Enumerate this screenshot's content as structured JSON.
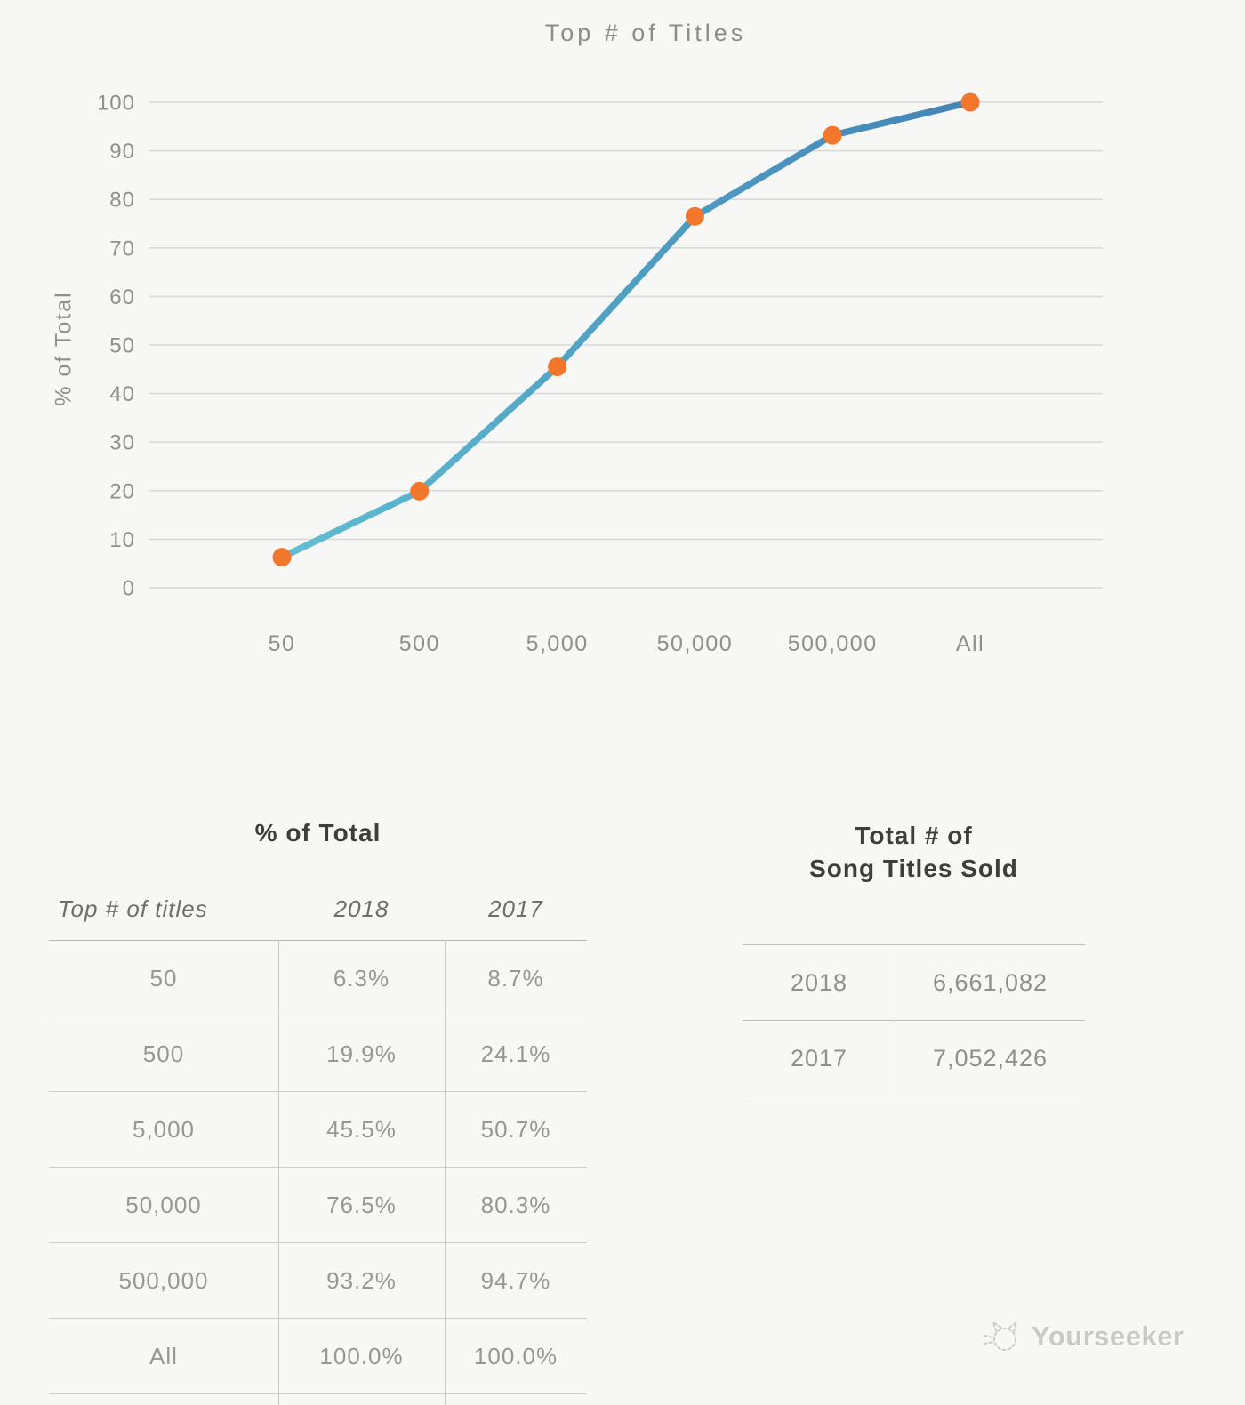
{
  "chart_data": {
    "type": "line",
    "title": "Top # of Titles",
    "ylabel": "% of Total",
    "xlabel": "",
    "categories": [
      "50",
      "500",
      "5,000",
      "50,000",
      "500,000",
      "All"
    ],
    "series": [
      {
        "name": "2018",
        "values": [
          6.3,
          19.9,
          45.5,
          76.5,
          93.2,
          100.0
        ]
      }
    ],
    "ylim": [
      0,
      100
    ],
    "ytick_step": 10,
    "grid": "horizontal",
    "legend": "none",
    "line_gradient": [
      "#60bed2",
      "#4f9fc3",
      "#4484b6"
    ],
    "marker_color": "#f2762b",
    "grid_color": "#d9d9d9"
  },
  "tables": {
    "percent_of_total": {
      "title": "% of Total",
      "columns": [
        "Top # of titles",
        "2018",
        "2017"
      ],
      "rows": [
        [
          "50",
          "6.3%",
          "8.7%"
        ],
        [
          "500",
          "19.9%",
          "24.1%"
        ],
        [
          "5,000",
          "45.5%",
          "50.7%"
        ],
        [
          "50,000",
          "76.5%",
          "80.3%"
        ],
        [
          "500,000",
          "93.2%",
          "94.7%"
        ],
        [
          "All",
          "100.0%",
          "100.0%"
        ]
      ]
    },
    "total_song_titles_sold": {
      "title_line1": "Total # of",
      "title_line2": "Song Titles Sold",
      "rows": [
        [
          "2018",
          "6,661,082"
        ],
        [
          "2017",
          "7,052,426"
        ]
      ]
    }
  },
  "watermark": {
    "label": "Yourseeker",
    "icon": "cat-logo-icon"
  }
}
